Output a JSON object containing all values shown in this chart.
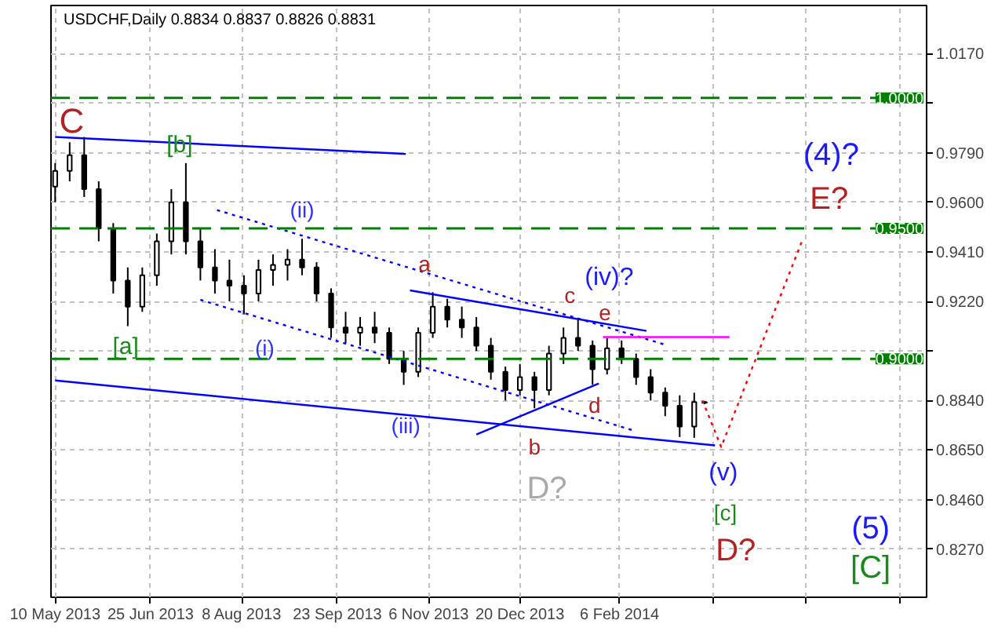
{
  "chart_data": {
    "type": "candlestick",
    "title": "USDCHF,Daily 0.8834 0.8837 0.8826 0.8831",
    "x": [
      "2013-05-10",
      "2013-05-17",
      "2013-05-24",
      "2013-05-31",
      "2013-06-07",
      "2013-06-14",
      "2013-06-21",
      "2013-06-28",
      "2013-07-05",
      "2013-07-12",
      "2013-07-19",
      "2013-07-26",
      "2013-08-02",
      "2013-08-09",
      "2013-08-16",
      "2013-08-23",
      "2013-08-30",
      "2013-09-06",
      "2013-09-13",
      "2013-09-20",
      "2013-09-27",
      "2013-10-04",
      "2013-10-11",
      "2013-10-18",
      "2013-10-25",
      "2013-11-01",
      "2013-11-08",
      "2013-11-15",
      "2013-11-22",
      "2013-11-29",
      "2013-12-06",
      "2013-12-13",
      "2013-12-20",
      "2013-12-27",
      "2014-01-03",
      "2014-01-10",
      "2014-01-17",
      "2014-01-24",
      "2014-01-31",
      "2014-02-07",
      "2014-02-14",
      "2014-02-21",
      "2014-02-28",
      "2014-03-07",
      "2014-03-14",
      "2014-03-19"
    ],
    "ohlc": [
      [
        0.966,
        0.975,
        0.96,
        0.972
      ],
      [
        0.972,
        0.983,
        0.968,
        0.978
      ],
      [
        0.978,
        0.985,
        0.962,
        0.965
      ],
      [
        0.965,
        0.968,
        0.945,
        0.95
      ],
      [
        0.95,
        0.952,
        0.925,
        0.93
      ],
      [
        0.93,
        0.935,
        0.9125,
        0.92
      ],
      [
        0.92,
        0.935,
        0.918,
        0.932
      ],
      [
        0.932,
        0.948,
        0.928,
        0.945
      ],
      [
        0.945,
        0.965,
        0.94,
        0.96
      ],
      [
        0.96,
        0.975,
        0.94,
        0.945
      ],
      [
        0.945,
        0.95,
        0.93,
        0.935
      ],
      [
        0.935,
        0.942,
        0.925,
        0.93
      ],
      [
        0.93,
        0.938,
        0.922,
        0.928
      ],
      [
        0.928,
        0.932,
        0.917,
        0.925
      ],
      [
        0.925,
        0.938,
        0.922,
        0.934
      ],
      [
        0.934,
        0.94,
        0.928,
        0.936
      ],
      [
        0.936,
        0.942,
        0.93,
        0.938
      ],
      [
        0.938,
        0.946,
        0.932,
        0.935
      ],
      [
        0.935,
        0.937,
        0.922,
        0.925
      ],
      [
        0.925,
        0.927,
        0.908,
        0.912
      ],
      [
        0.912,
        0.918,
        0.906,
        0.91
      ],
      [
        0.91,
        0.916,
        0.905,
        0.912
      ],
      [
        0.912,
        0.918,
        0.906,
        0.91
      ],
      [
        0.91,
        0.912,
        0.898,
        0.9
      ],
      [
        0.9,
        0.903,
        0.89,
        0.895
      ],
      [
        0.895,
        0.912,
        0.893,
        0.91
      ],
      [
        0.91,
        0.9255,
        0.908,
        0.92
      ],
      [
        0.92,
        0.923,
        0.912,
        0.915
      ],
      [
        0.915,
        0.92,
        0.908,
        0.912
      ],
      [
        0.912,
        0.916,
        0.903,
        0.905
      ],
      [
        0.905,
        0.908,
        0.892,
        0.895
      ],
      [
        0.895,
        0.897,
        0.884,
        0.888
      ],
      [
        0.888,
        0.898,
        0.886,
        0.893
      ],
      [
        0.893,
        0.895,
        0.881,
        0.888
      ],
      [
        0.888,
        0.905,
        0.886,
        0.902
      ],
      [
        0.902,
        0.912,
        0.898,
        0.908
      ],
      [
        0.908,
        0.9155,
        0.903,
        0.905
      ],
      [
        0.905,
        0.907,
        0.89,
        0.896
      ],
      [
        0.896,
        0.908,
        0.894,
        0.904
      ],
      [
        0.904,
        0.907,
        0.898,
        0.9
      ],
      [
        0.9,
        0.902,
        0.89,
        0.893
      ],
      [
        0.893,
        0.896,
        0.884,
        0.887
      ],
      [
        0.887,
        0.889,
        0.878,
        0.882
      ],
      [
        0.882,
        0.886,
        0.87,
        0.874
      ],
      [
        0.874,
        0.887,
        0.8697,
        0.8834
      ],
      [
        0.8834,
        0.8837,
        0.8826,
        0.8831
      ]
    ],
    "color": "#000000",
    "series": [
      {
        "type": "line",
        "color": "#0000ff",
        "line_style": "solid",
        "x": [
          "2013-05-10",
          "2013-10-26"
        ],
        "values": [
          0.985,
          0.9785
        ]
      },
      {
        "type": "line",
        "color": "#0000ff",
        "line_style": "dotted",
        "x": [
          "2013-07-27",
          "2014-02-28"
        ],
        "values": [
          0.957,
          0.9054
        ]
      },
      {
        "type": "line",
        "color": "#0000ff",
        "line_style": "dotted",
        "x": [
          "2013-07-19",
          "2014-02-12"
        ],
        "values": [
          0.9226,
          0.8727
        ]
      },
      {
        "type": "line",
        "color": "#0000ff",
        "line_style": "solid",
        "x": [
          "2013-05-10",
          "2014-03-24"
        ],
        "values": [
          0.8917,
          0.8668
        ]
      },
      {
        "type": "line",
        "color": "#0000ff",
        "line_style": "solid",
        "x": [
          "2013-10-28",
          "2014-02-19"
        ],
        "values": [
          0.9262,
          0.9107
        ]
      },
      {
        "type": "line",
        "color": "#0000ff",
        "line_style": "solid",
        "x": [
          "2013-11-29",
          "2014-01-27"
        ],
        "values": [
          0.871,
          0.8905
        ]
      },
      {
        "type": "line",
        "color": "#ff00ff",
        "line_style": "solid",
        "x": [
          "2014-01-29",
          "2014-03-31"
        ],
        "values": [
          0.9083,
          0.9083
        ]
      },
      {
        "type": "line",
        "color": "#ff0000",
        "line_style": "dotted",
        "x": [
          "2014-03-18",
          "2014-03-27",
          "2014-05-05"
        ],
        "values": [
          0.884,
          0.8662,
          0.9452
        ]
      }
    ],
    "ref_lines": [
      {
        "axis": "y",
        "value": 1.0,
        "label": "1.0000",
        "color": "#008000",
        "line_style": "dashed"
      },
      {
        "axis": "y",
        "value": 0.95,
        "label": "0.9500",
        "color": "#008000",
        "line_style": "dashed"
      },
      {
        "axis": "y",
        "value": 0.9,
        "label": "0.9000",
        "color": "#008000",
        "line_style": "dashed"
      }
    ],
    "annotations": [
      "C",
      "[b]",
      "(ii)",
      "a",
      "[a]",
      "(i)",
      "(iii)",
      "b",
      "c",
      "(iv)?",
      "e",
      "d",
      "D?",
      "(v)",
      "[c]",
      "D?",
      "(4)?",
      "E?",
      "(5)",
      "[C]"
    ],
    "xlim": [
      "2013-05-08",
      "2014-07-04"
    ],
    "xticks": [
      {
        "value": "2013-05-10",
        "label": "10 May 2013"
      },
      {
        "value": "2013-06-25",
        "label": "25 Jun 2013"
      },
      {
        "value": "2013-08-08",
        "label": "8 Aug 2013"
      },
      {
        "value": "2013-09-23",
        "label": "23 Sep 2013"
      },
      {
        "value": "2013-11-06",
        "label": "6 Nov 2013"
      },
      {
        "value": "2013-12-20",
        "label": "20 Dec 2013"
      },
      {
        "value": "2014-02-06",
        "label": "6 Feb 2014"
      },
      {
        "value": "2014-03-23",
        "label": null
      },
      {
        "value": "2014-05-07",
        "label": null
      },
      {
        "value": "2014-06-21",
        "label": null
      }
    ],
    "ylim": [
      0.8086,
      1.0354
    ],
    "yticks": [
      {
        "value": 1.017,
        "label": "1.0170"
      },
      {
        "value": 0.998,
        "label": null
      },
      {
        "value": 0.979,
        "label": "0.9790"
      },
      {
        "value": 0.96,
        "label": "0.9600"
      },
      {
        "value": 0.941,
        "label": "0.9410"
      },
      {
        "value": 0.922,
        "label": "0.9220"
      },
      {
        "value": 0.903,
        "label": null
      },
      {
        "value": 0.884,
        "label": "0.8840"
      },
      {
        "value": 0.865,
        "label": "0.8650"
      },
      {
        "value": 0.846,
        "label": "0.8460"
      },
      {
        "value": 0.827,
        "label": "0.8270"
      }
    ],
    "grid": true
  }
}
